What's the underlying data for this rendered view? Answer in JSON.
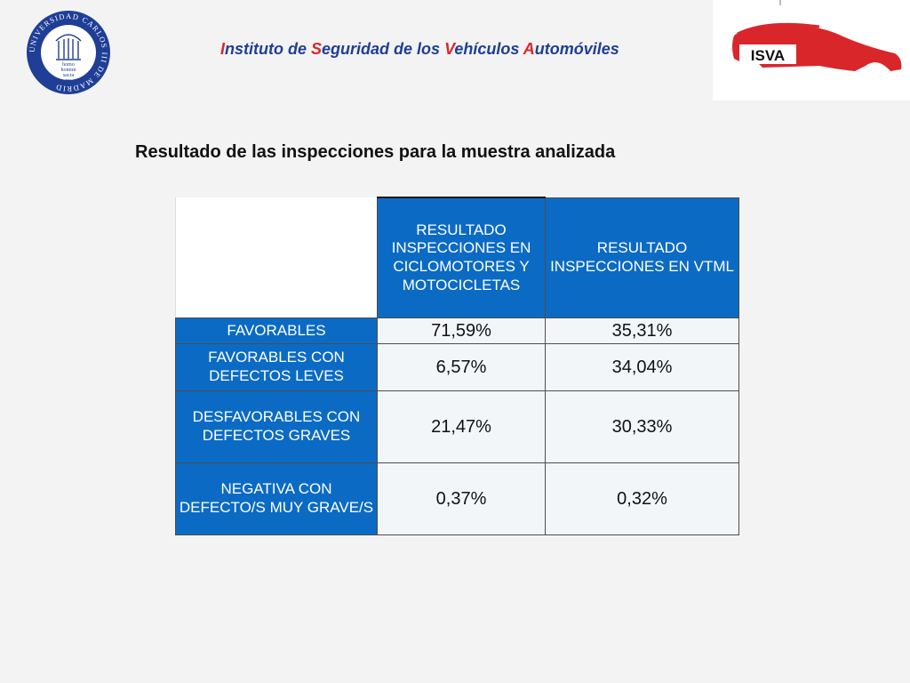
{
  "header": {
    "title_parts": [
      {
        "text": "I",
        "highlight": true
      },
      {
        "text": "nstituto de ",
        "highlight": false
      },
      {
        "text": "S",
        "highlight": true
      },
      {
        "text": "eguridad de los ",
        "highlight": false
      },
      {
        "text": "V",
        "highlight": true
      },
      {
        "text": "ehículos ",
        "highlight": false
      },
      {
        "text": "A",
        "highlight": true
      },
      {
        "text": "utomóviles",
        "highlight": false
      }
    ],
    "left_logo": {
      "ring_text": "UNIVERSIDAD CARLOS III DE MADRID",
      "center_lines": [
        "homo",
        "homini",
        "sacra",
        "res"
      ]
    },
    "right_logo": {
      "text": "ISVA"
    }
  },
  "slide_title": "Resultado de las inspecciones para la muestra analizada",
  "table": {
    "columns": [
      "RESULTADO INSPECCIONES EN CICLOMOTORES Y MOTOCICLETAS",
      "RESULTADO INSPECCIONES EN VTML"
    ],
    "rows": [
      {
        "label": "FAVORABLES",
        "values": [
          "71,59%",
          "35,31%"
        ]
      },
      {
        "label": "FAVORABLES CON DEFECTOS LEVES",
        "values": [
          "6,57%",
          "34,04%"
        ]
      },
      {
        "label": "DESFAVORABLES CON DEFECTOS GRAVES",
        "values": [
          "21,47%",
          "30,33%"
        ]
      },
      {
        "label": "NEGATIVA CON DEFECTO/S MUY GRAVE/S",
        "values": [
          "0,37%",
          "0,32%"
        ]
      }
    ]
  },
  "colors": {
    "brand_blue": "#1f3e96",
    "brand_red": "#d9262b",
    "table_blue": "#0b6bc4"
  }
}
